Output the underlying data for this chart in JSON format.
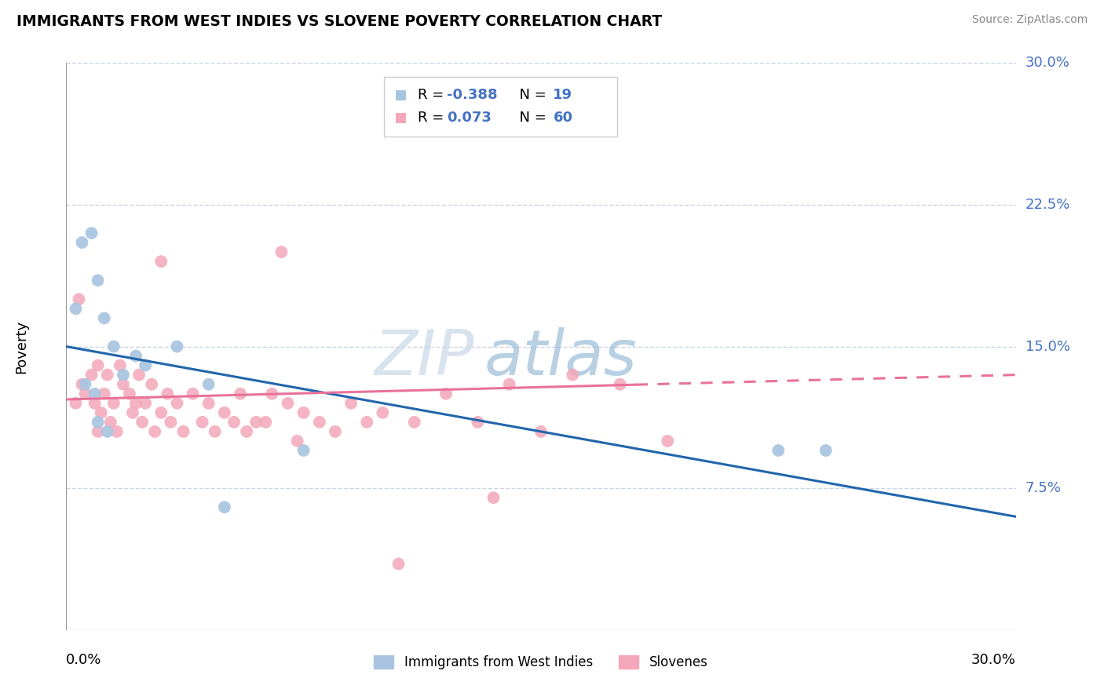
{
  "title": "IMMIGRANTS FROM WEST INDIES VS SLOVENE POVERTY CORRELATION CHART",
  "source": "Source: ZipAtlas.com",
  "ylabel": "Poverty",
  "xmin": 0.0,
  "xmax": 30.0,
  "ymin": 0.0,
  "ymax": 30.0,
  "ytick_labels": [
    "7.5%",
    "15.0%",
    "22.5%",
    "30.0%"
  ],
  "ytick_values": [
    7.5,
    15.0,
    22.5,
    30.0
  ],
  "legend1_label": "Immigrants from West Indies",
  "legend2_label": "Slovenes",
  "r1": "-0.388",
  "n1": "19",
  "r2": "0.073",
  "n2": "60",
  "blue_color": "#a8c4e0",
  "pink_color": "#f4a7b9",
  "blue_line_color": "#2166ac",
  "pink_line_color": "#e8729a",
  "grid_color": "#c8d4e8",
  "watermark_zip_color": "#c0cfe0",
  "watermark_atlas_color": "#99b8d8",
  "blue_line_start_y": 15.0,
  "blue_line_end_y": 6.0,
  "pink_line_start_y": 12.2,
  "pink_line_end_y": 13.5,
  "pink_dash_start_x": 18.0,
  "blue_scatter_x": [
    0.3,
    0.5,
    0.8,
    1.0,
    1.2,
    1.5,
    1.8,
    2.2,
    2.5,
    3.5,
    0.6,
    0.9,
    4.5,
    7.5,
    22.5,
    24.0,
    1.0,
    1.3,
    5.0
  ],
  "blue_scatter_y": [
    17.0,
    20.5,
    21.0,
    18.5,
    16.5,
    15.0,
    13.5,
    14.5,
    14.0,
    15.0,
    13.0,
    12.5,
    13.0,
    9.5,
    9.5,
    9.5,
    11.0,
    10.5,
    6.5
  ],
  "pink_scatter_x": [
    0.3,
    0.5,
    0.6,
    0.8,
    0.9,
    1.0,
    1.2,
    1.3,
    1.5,
    1.7,
    1.8,
    2.0,
    2.2,
    2.3,
    2.5,
    2.7,
    3.0,
    3.2,
    3.5,
    4.0,
    4.5,
    5.0,
    5.5,
    6.0,
    6.5,
    7.0,
    7.5,
    8.0,
    9.0,
    10.0,
    11.0,
    12.0,
    13.0,
    14.0,
    15.0,
    16.0,
    17.5,
    19.0,
    1.0,
    1.1,
    1.4,
    1.6,
    2.1,
    2.4,
    2.8,
    3.3,
    3.7,
    4.3,
    4.7,
    5.3,
    5.7,
    6.3,
    7.3,
    8.5,
    9.5,
    0.4,
    3.0,
    6.8,
    10.5,
    13.5
  ],
  "pink_scatter_y": [
    12.0,
    13.0,
    12.5,
    13.5,
    12.0,
    14.0,
    12.5,
    13.5,
    12.0,
    14.0,
    13.0,
    12.5,
    12.0,
    13.5,
    12.0,
    13.0,
    11.5,
    12.5,
    12.0,
    12.5,
    12.0,
    11.5,
    12.5,
    11.0,
    12.5,
    12.0,
    11.5,
    11.0,
    12.0,
    11.5,
    11.0,
    12.5,
    11.0,
    13.0,
    10.5,
    13.5,
    13.0,
    10.0,
    10.5,
    11.5,
    11.0,
    10.5,
    11.5,
    11.0,
    10.5,
    11.0,
    10.5,
    11.0,
    10.5,
    11.0,
    10.5,
    11.0,
    10.0,
    10.5,
    11.0,
    17.5,
    19.5,
    20.0,
    3.5,
    7.0
  ]
}
